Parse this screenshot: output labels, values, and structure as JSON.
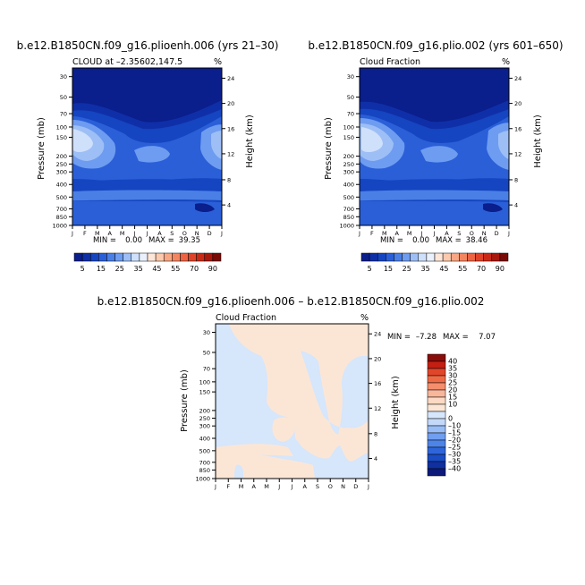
{
  "colors": {
    "background": "#ffffff",
    "blues": [
      "#0a1e8c",
      "#0f2fa8",
      "#1545c0",
      "#2a5fd8",
      "#4a7fe6",
      "#6e9cf0",
      "#9dbff6",
      "#cfe0fb"
    ],
    "diff_palette": [
      "#0d1a7a",
      "#1030a0",
      "#1a4cc4",
      "#2e66da",
      "#4d84e8",
      "#709ef0",
      "#98bcf6",
      "#c4d9fa",
      "#f0f3f8",
      "#fbd9c4",
      "#f8b69a",
      "#f48e6c",
      "#ee6a45",
      "#e0462a",
      "#c41f12",
      "#8a0d0a"
    ]
  },
  "chart_data": [
    {
      "type": "heatmap",
      "title": "b.e12.B1850CN.f09_g16.plioenh.006 (yrs 21–30)",
      "subtitle_left": "CLOUD at –2.35602,147.5",
      "subtitle_right": "%",
      "ylabel": "Pressure (mb)",
      "y2label": "Height (km)",
      "months": [
        "J",
        "F",
        "M",
        "A",
        "M",
        "J",
        "J",
        "A",
        "S",
        "O",
        "N",
        "D",
        "J"
      ],
      "pressure_ticks": [
        "30",
        "50",
        "70",
        "100",
        "150",
        "200",
        "250",
        "300",
        "400",
        "500",
        "700",
        "850",
        "1000"
      ],
      "height_ticks": [
        "24",
        "20",
        "16",
        "12",
        "8",
        "4"
      ],
      "min_label": "MIN =",
      "min": "0.00",
      "max_label": "MAX =",
      "max": "39.35",
      "colorbar_levels": [
        5,
        10,
        15,
        20,
        25,
        30,
        35,
        40,
        45,
        50,
        55,
        60,
        65,
        70,
        75,
        80,
        85,
        90
      ],
      "colorbar_labels": [
        "5",
        "15",
        "25",
        "35",
        "45",
        "55",
        "70",
        "90"
      ]
    },
    {
      "type": "heatmap",
      "title": "b.e12.B1850CN.f09_g16.plio.002 (yrs 601–650)",
      "subtitle_left": "Cloud Fraction",
      "subtitle_right": "%",
      "ylabel": "Pressure (mb)",
      "y2label": "Height (km)",
      "months": [
        "J",
        "F",
        "M",
        "A",
        "M",
        "J",
        "J",
        "A",
        "S",
        "O",
        "N",
        "D",
        "J"
      ],
      "pressure_ticks": [
        "30",
        "50",
        "70",
        "100",
        "150",
        "200",
        "250",
        "300",
        "400",
        "500",
        "700",
        "850",
        "1000"
      ],
      "height_ticks": [
        "24",
        "20",
        "16",
        "12",
        "8",
        "4"
      ],
      "min_label": "MIN =",
      "min": "0.00",
      "max_label": "MAX =",
      "max": "38.46",
      "colorbar_levels": [
        5,
        10,
        15,
        20,
        25,
        30,
        35,
        40,
        45,
        50,
        55,
        60,
        65,
        70,
        75,
        80,
        85,
        90
      ],
      "colorbar_labels": [
        "5",
        "15",
        "25",
        "35",
        "45",
        "55",
        "70",
        "90"
      ]
    },
    {
      "type": "heatmap",
      "title": "b.e12.B1850CN.f09_g16.plioenh.006 – b.e12.B1850CN.f09_g16.plio.002",
      "subtitle_left": "Cloud Fraction",
      "subtitle_right": "%",
      "ylabel": "Pressure (mb)",
      "y2label": "Height (km)",
      "months": [
        "J",
        "F",
        "M",
        "A",
        "M",
        "J",
        "J",
        "A",
        "S",
        "O",
        "N",
        "D",
        "J"
      ],
      "pressure_ticks": [
        "30",
        "50",
        "70",
        "100",
        "150",
        "200",
        "250",
        "300",
        "400",
        "500",
        "700",
        "850",
        "1000"
      ],
      "height_ticks": [
        "24",
        "20",
        "16",
        "12",
        "8",
        "4"
      ],
      "min_label": "MIN =",
      "min": "–7.28",
      "max_label": "MAX =",
      "max": "7.07",
      "colorbar_labels": [
        "40",
        "35",
        "30",
        "25",
        "20",
        "15",
        "10",
        "0",
        "–10",
        "–15",
        "–20",
        "–25",
        "–30",
        "–35",
        "–40"
      ]
    }
  ]
}
